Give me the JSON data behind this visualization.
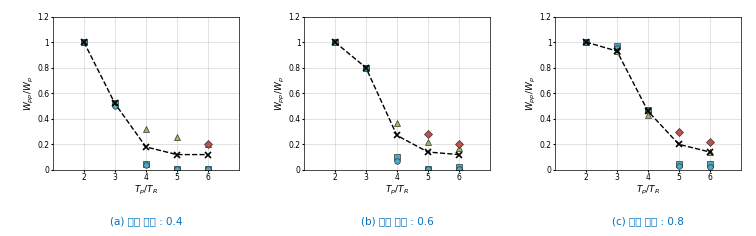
{
  "subplots": [
    {
      "label": "(a) 내력 비율 : 0.4",
      "x": [
        2,
        3,
        4,
        5,
        6
      ],
      "series": [
        {
          "y": [
            1.0,
            0.52,
            0.18,
            0.12,
            0.12
          ],
          "marker": "x",
          "color": "#000000",
          "ms": 4,
          "lw": 1.0,
          "ls": "--",
          "zorder": 3,
          "mew": 1.2
        },
        {
          "y": [
            1.0,
            0.52,
            0.05,
            0.01,
            0.01
          ],
          "marker": "s",
          "color": "#4BACC6",
          "ms": 4,
          "lw": 0,
          "ls": "none",
          "zorder": 2,
          "mew": 0.5
        },
        {
          "y": [
            1.0,
            0.5,
            0.04,
            0.01,
            0.01
          ],
          "marker": "o",
          "color": "#4BACC6",
          "ms": 4,
          "lw": 0,
          "ls": "none",
          "zorder": 2,
          "mew": 0.5
        },
        {
          "y": [
            null,
            null,
            0.32,
            0.26,
            0.2
          ],
          "marker": "^",
          "color": "#9BBB59",
          "ms": 4,
          "lw": 0,
          "ls": "none",
          "zorder": 2,
          "mew": 0.5
        },
        {
          "y": [
            null,
            null,
            null,
            null,
            0.2
          ],
          "marker": "D",
          "color": "#C0504D",
          "ms": 4,
          "lw": 0,
          "ls": "none",
          "zorder": 2,
          "mew": 0.5
        }
      ]
    },
    {
      "label": "(b) 내력 비율 : 0.6",
      "x": [
        2,
        3,
        4,
        5,
        6
      ],
      "series": [
        {
          "y": [
            1.0,
            0.8,
            0.27,
            0.14,
            0.12
          ],
          "marker": "x",
          "color": "#000000",
          "ms": 4,
          "lw": 1.0,
          "ls": "--",
          "zorder": 3,
          "mew": 1.2
        },
        {
          "y": [
            1.0,
            0.8,
            0.1,
            0.01,
            0.02
          ],
          "marker": "s",
          "color": "#4BACC6",
          "ms": 4,
          "lw": 0,
          "ls": "none",
          "zorder": 2,
          "mew": 0.5
        },
        {
          "y": [
            1.0,
            0.8,
            0.07,
            0.01,
            0.01
          ],
          "marker": "o",
          "color": "#4BACC6",
          "ms": 4,
          "lw": 0,
          "ls": "none",
          "zorder": 2,
          "mew": 0.5
        },
        {
          "y": [
            null,
            null,
            0.37,
            0.22,
            0.17
          ],
          "marker": "^",
          "color": "#9BBB59",
          "ms": 4,
          "lw": 0,
          "ls": "none",
          "zorder": 2,
          "mew": 0.5
        },
        {
          "y": [
            null,
            null,
            null,
            0.28,
            0.2
          ],
          "marker": "D",
          "color": "#C0504D",
          "ms": 4,
          "lw": 0,
          "ls": "none",
          "zorder": 2,
          "mew": 0.5
        }
      ]
    },
    {
      "label": "(c) 내력 비율 : 0.8",
      "x": [
        2,
        3,
        4,
        5,
        6
      ],
      "series": [
        {
          "y": [
            1.0,
            0.93,
            0.46,
            0.2,
            0.14
          ],
          "marker": "x",
          "color": "#000000",
          "ms": 4,
          "lw": 1.0,
          "ls": "--",
          "zorder": 3,
          "mew": 1.2
        },
        {
          "y": [
            1.0,
            0.97,
            0.47,
            0.05,
            0.05
          ],
          "marker": "s",
          "color": "#4BACC6",
          "ms": 4,
          "lw": 0,
          "ls": "none",
          "zorder": 2,
          "mew": 0.5
        },
        {
          "y": [
            1.0,
            0.95,
            0.46,
            0.03,
            0.02
          ],
          "marker": "o",
          "color": "#4BACC6",
          "ms": 4,
          "lw": 0,
          "ls": "none",
          "zorder": 2,
          "mew": 0.5
        },
        {
          "y": [
            null,
            0.93,
            0.43,
            null,
            0.14
          ],
          "marker": "^",
          "color": "#9BBB59",
          "ms": 4,
          "lw": 0,
          "ls": "none",
          "zorder": 2,
          "mew": 0.5
        },
        {
          "y": [
            null,
            null,
            null,
            0.3,
            0.22
          ],
          "marker": "D",
          "color": "#C0504D",
          "ms": 4,
          "lw": 0,
          "ls": "none",
          "zorder": 2,
          "mew": 0.5
        }
      ]
    }
  ],
  "xlabel": "$T_p/T_R$",
  "ylabel": "$W_{pp}/W_p$",
  "xlim": [
    1,
    7
  ],
  "ylim": [
    0,
    1.2
  ],
  "xticks": [
    2,
    3,
    4,
    5,
    6
  ],
  "xticklabels": [
    "2",
    "3",
    "4",
    "5",
    "6"
  ],
  "yticks": [
    0,
    0.2,
    0.4,
    0.6,
    0.8,
    1.0,
    1.2
  ],
  "yticklabels": [
    "0",
    "0.2",
    "0.4",
    "0.6",
    "0.8",
    "1",
    "1.2"
  ],
  "label_color": "#0070C0",
  "label_fontsize": 7.5,
  "tick_fontsize": 5.5,
  "axis_label_fontsize": 6.5,
  "figsize": [
    7.56,
    2.36
  ],
  "dpi": 100
}
